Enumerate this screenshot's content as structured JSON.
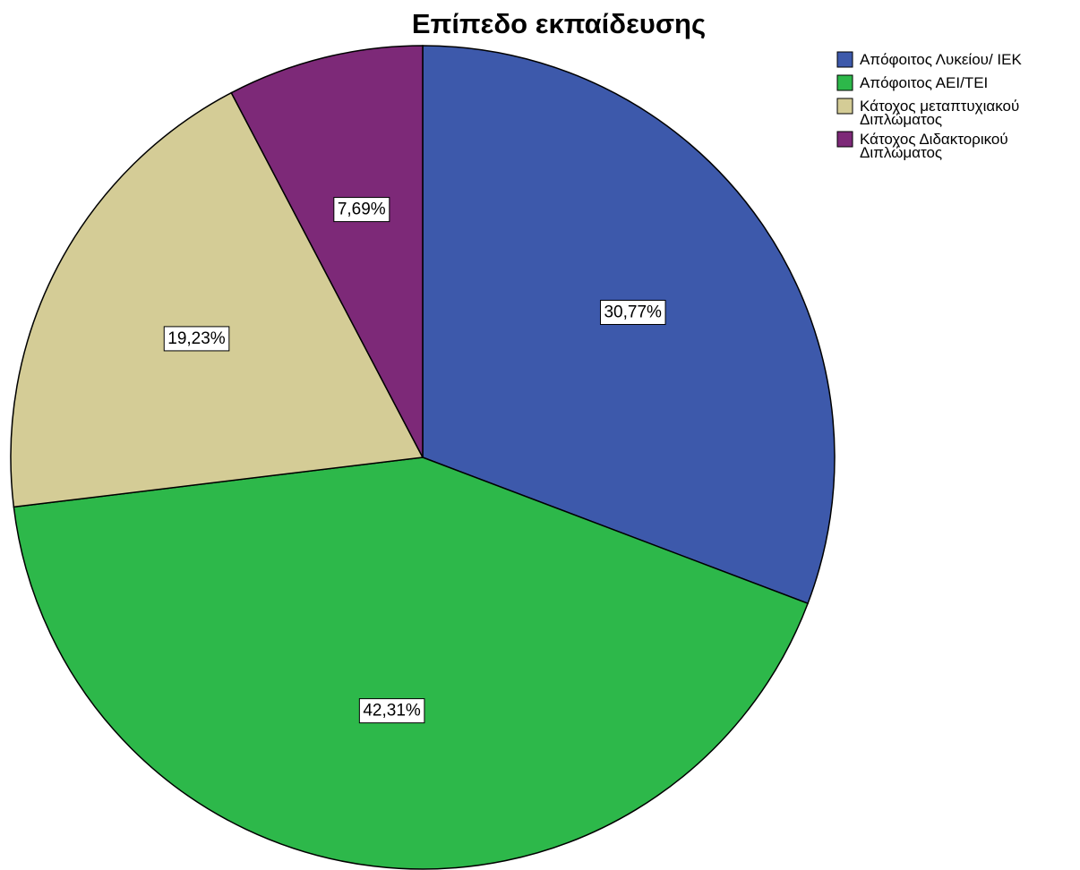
{
  "chart_data": {
    "type": "pie",
    "title": "Επίπεδο εκπαίδευσης",
    "legend_position": "top-right",
    "slices": [
      {
        "label": [
          "Απόφοιτος Λυκείου/ ΙΕΚ"
        ],
        "value": 30.77,
        "display": "30,77%",
        "color": "#3d59ab"
      },
      {
        "label": [
          "Απόφοιτος ΑΕΙ/ΤΕΙ"
        ],
        "value": 42.31,
        "display": "42,31%",
        "color": "#2db84a"
      },
      {
        "label": [
          "Κάτοχος μεταπτυχιακού",
          "Διπλώματος"
        ],
        "value": 19.23,
        "display": "19,23%",
        "color": "#d4cc96"
      },
      {
        "label": [
          "Κάτοχος Διδακτορικού",
          "Διπλώματος"
        ],
        "value": 7.69,
        "display": "7,69%",
        "color": "#7d2978"
      }
    ]
  }
}
